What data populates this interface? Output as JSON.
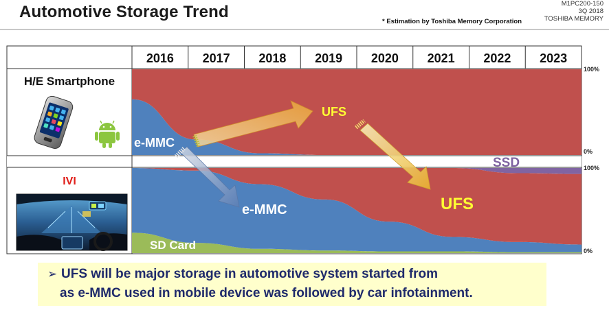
{
  "header": {
    "title": "Automotive Storage Trend",
    "doc_id_lines": [
      "M1PC200-150",
      "3Q 2018",
      "TOSHIBA MEMORY"
    ],
    "estimation_note": "* Estimation by Toshiba Memory Corporation"
  },
  "colors": {
    "ufs": "#c0504d",
    "emmc": "#4f81bd",
    "sd_card": "#9bbb59",
    "ssd": "#8064a2",
    "highlight_text": "#ffff33",
    "note_bg": "#ffffcc",
    "note_text": "#1f2a6b"
  },
  "chart_data": [
    {
      "type": "area",
      "row_label": "H/E Smartphone",
      "icons": [
        "smartphone-icon",
        "android-icon"
      ],
      "x": [
        "2016",
        "2017",
        "2018",
        "2019",
        "2020",
        "2021",
        "2022",
        "2023"
      ],
      "ylim": [
        0,
        100
      ],
      "y_axis_ticks": [
        "100%",
        "0%"
      ],
      "series": [
        {
          "name": "e-MMC",
          "color": "#4f81bd",
          "values": [
            65,
            18,
            2,
            0,
            0,
            0,
            0,
            0
          ]
        },
        {
          "name": "UFS",
          "color": "#c0504d",
          "values": [
            35,
            82,
            98,
            100,
            100,
            100,
            100,
            100
          ]
        }
      ]
    },
    {
      "type": "area",
      "row_label": "IVI",
      "icons": [
        "car-dashboard-icon"
      ],
      "x": [
        "2016",
        "2017",
        "2018",
        "2019",
        "2020",
        "2021",
        "2022",
        "2023"
      ],
      "ylim": [
        0,
        100
      ],
      "y_axis_ticks": [
        "100%",
        "0%"
      ],
      "series": [
        {
          "name": "SD Card",
          "color": "#9bbb59",
          "values": [
            24,
            12,
            5,
            3,
            2,
            2,
            1,
            1
          ]
        },
        {
          "name": "e-MMC",
          "color": "#4f81bd",
          "values": [
            76,
            85,
            76,
            60,
            35,
            17,
            12,
            9
          ]
        },
        {
          "name": "UFS",
          "color": "#c0504d",
          "values": [
            0,
            3,
            19,
            37,
            63,
            81,
            81,
            83
          ]
        },
        {
          "name": "SSD",
          "color": "#8064a2",
          "values": [
            0,
            0,
            0,
            0,
            0,
            0,
            6,
            7
          ]
        }
      ]
    }
  ],
  "annotations": {
    "smartphone_emmc": "e-MMC",
    "smartphone_ufs": "UFS",
    "ivi_emmc": "e-MMC",
    "ivi_ufs": "UFS",
    "ivi_sd": "SD Card",
    "ivi_ssd": "SSD"
  },
  "bottom_note": {
    "arrow_glyph": "➢",
    "line1": "UFS will be major storage in automotive system started from",
    "line2": "as e-MMC used in mobile device was followed by car infotainment."
  }
}
